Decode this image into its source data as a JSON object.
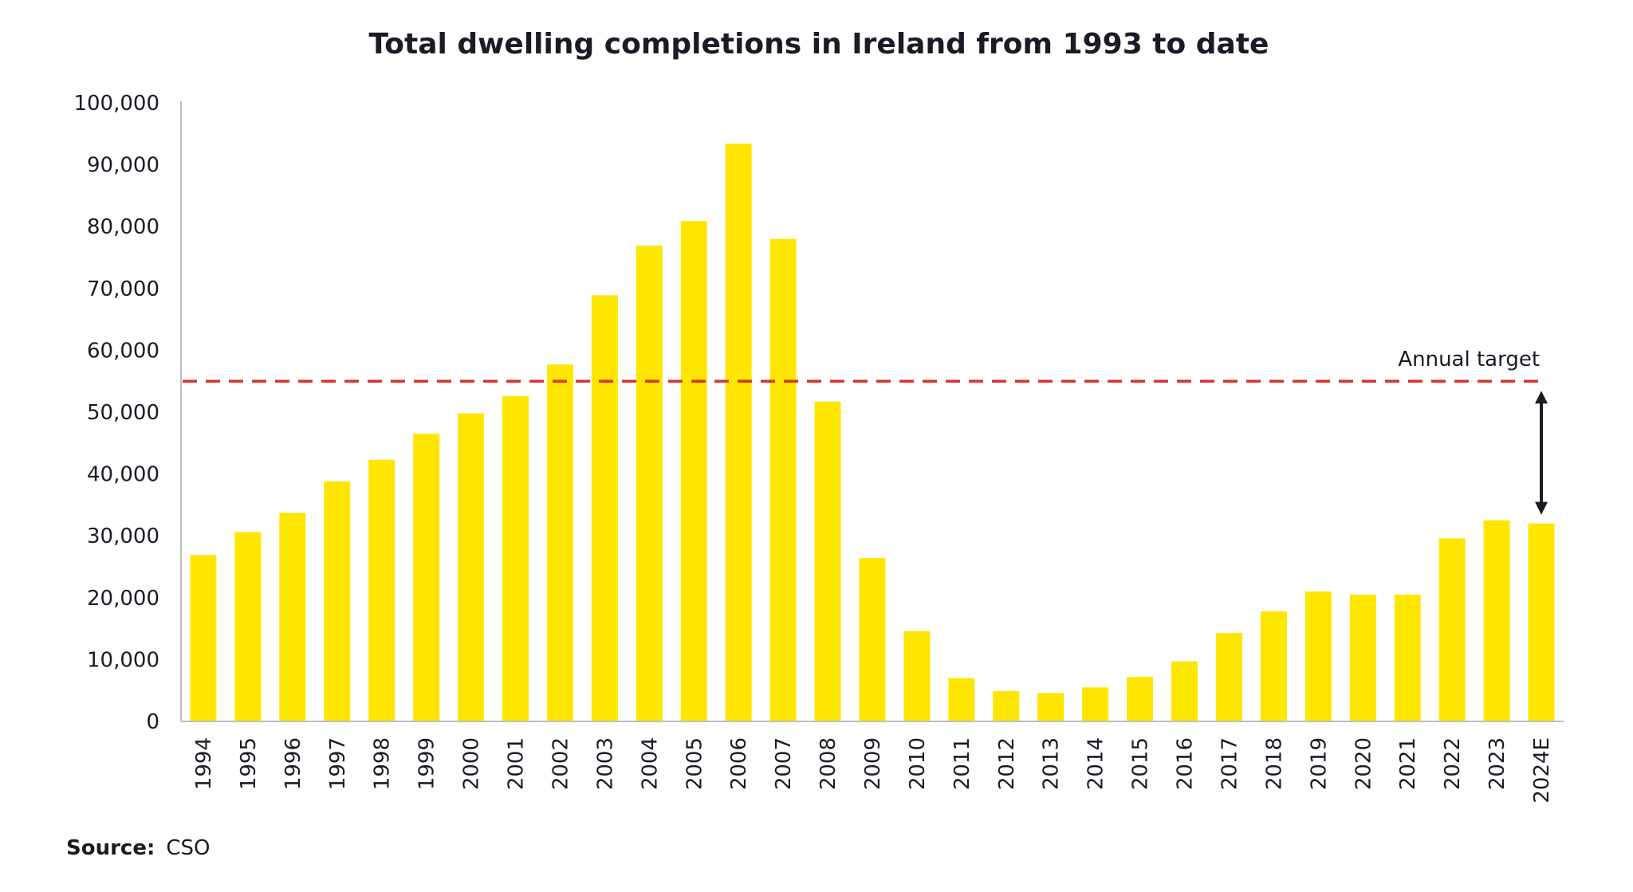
{
  "chart_data": {
    "type": "bar",
    "title": "Total dwelling completions in Ireland from 1993 to date",
    "xlabel": "",
    "ylabel": "",
    "ylim": [
      0,
      100000
    ],
    "yticks": [
      0,
      10000,
      20000,
      30000,
      40000,
      50000,
      60000,
      70000,
      80000,
      90000,
      100000
    ],
    "ytick_labels": [
      "0",
      "10,000",
      "20,000",
      "30,000",
      "40,000",
      "50,000",
      "60,000",
      "70,000",
      "80,000",
      "90,000",
      "100,000"
    ],
    "grid": false,
    "categories": [
      "1994",
      "1995",
      "1996",
      "1997",
      "1998",
      "1999",
      "2000",
      "2001",
      "2002",
      "2003",
      "2004",
      "2005",
      "2006",
      "2007",
      "2008",
      "2009",
      "2010",
      "2011",
      "2012",
      "2013",
      "2014",
      "2015",
      "2016",
      "2017",
      "2018",
      "2019",
      "2020",
      "2021",
      "2022",
      "2023",
      "2024E"
    ],
    "series": [
      {
        "name": "Total dwelling completions",
        "color": "#FFE600",
        "values": [
          26900,
          30600,
          33700,
          38800,
          42300,
          46500,
          49800,
          52600,
          57700,
          68900,
          76900,
          80900,
          93400,
          78000,
          51700,
          26400,
          14600,
          7000,
          4900,
          4600,
          5500,
          7200,
          9700,
          14300,
          17800,
          21000,
          20500,
          20500,
          29600,
          32500,
          32000
        ]
      }
    ],
    "reference_line": {
      "label": "Annual target",
      "value": 55000,
      "color": "#D9332B",
      "style": "dashed"
    },
    "gap_arrow": {
      "from_value": 55000,
      "to_value": 32000,
      "category": "2024E",
      "color": "#1b1b25"
    },
    "source_label": "Source:",
    "source_value": "CSO"
  }
}
